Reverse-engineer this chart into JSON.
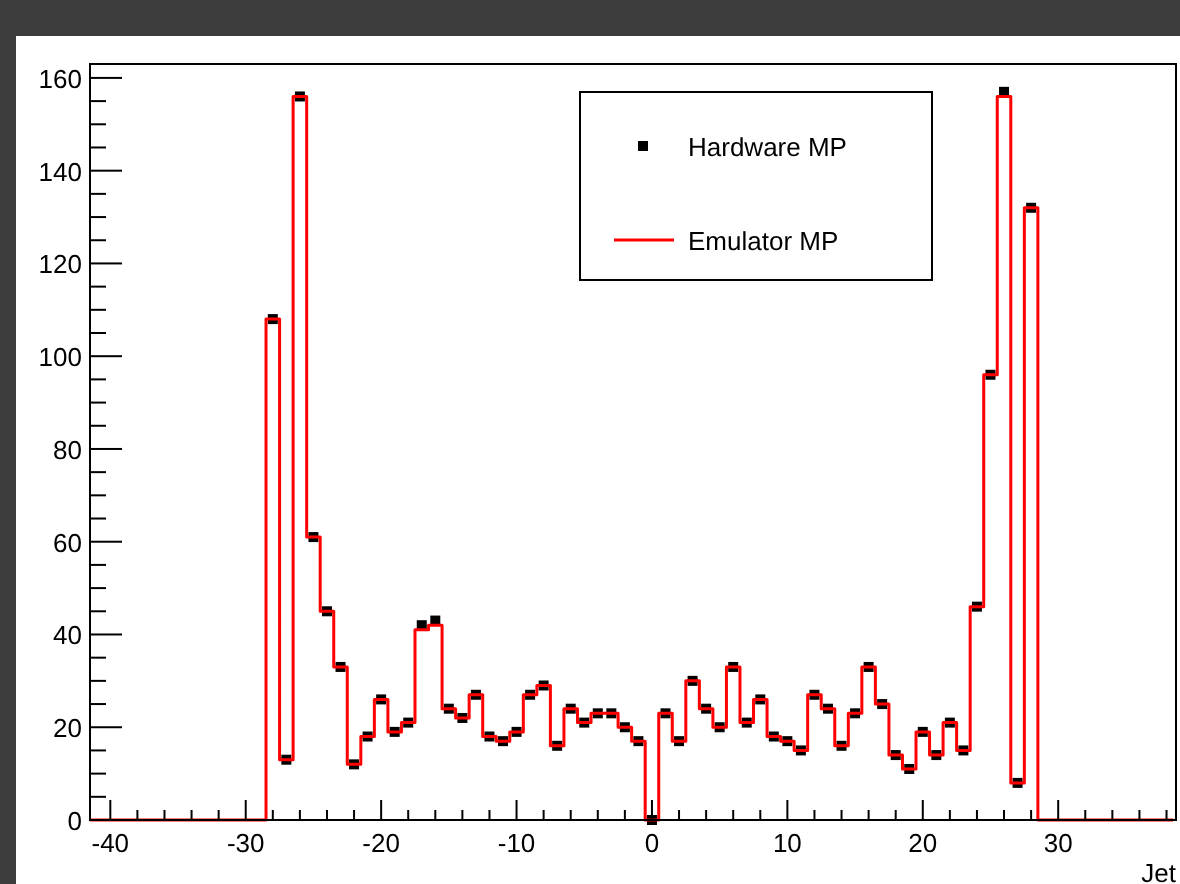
{
  "chart_data": {
    "type": "histogram",
    "xlabel": "Jet",
    "xlim": [
      -41.5,
      38.7
    ],
    "ylim": [
      0,
      163
    ],
    "xticks": [
      -40,
      {
        "value": -38,
        "label": null
      },
      {
        "value": -36,
        "label": null
      },
      {
        "value": -34,
        "label": null
      },
      {
        "value": -32,
        "label": null
      },
      -30,
      {
        "value": -28,
        "label": null
      },
      {
        "value": -26,
        "label": null
      },
      {
        "value": -24,
        "label": null
      },
      {
        "value": -22,
        "label": null
      },
      -20,
      {
        "value": -18,
        "label": null
      },
      {
        "value": -16,
        "label": null
      },
      {
        "value": -14,
        "label": null
      },
      {
        "value": -12,
        "label": null
      },
      -10,
      {
        "value": -8,
        "label": null
      },
      {
        "value": -6,
        "label": null
      },
      {
        "value": -4,
        "label": null
      },
      {
        "value": -2,
        "label": null
      },
      0,
      {
        "value": 2,
        "label": null
      },
      {
        "value": 4,
        "label": null
      },
      {
        "value": 6,
        "label": null
      },
      {
        "value": 8,
        "label": null
      },
      10,
      {
        "value": 12,
        "label": null
      },
      {
        "value": 14,
        "label": null
      },
      {
        "value": 16,
        "label": null
      },
      {
        "value": 18,
        "label": null
      },
      20,
      {
        "value": 22,
        "label": null
      },
      {
        "value": 24,
        "label": null
      },
      {
        "value": 26,
        "label": null
      },
      {
        "value": 28,
        "label": null
      },
      30,
      {
        "value": 32,
        "label": null
      },
      {
        "value": 34,
        "label": null
      },
      {
        "value": 36,
        "label": null
      },
      {
        "value": 38,
        "label": null
      }
    ],
    "yticks": [
      0,
      {
        "value": 5,
        "label": null
      },
      {
        "value": 10,
        "label": null
      },
      {
        "value": 15,
        "label": null
      },
      20,
      {
        "value": 25,
        "label": null
      },
      {
        "value": 30,
        "label": null
      },
      {
        "value": 35,
        "label": null
      },
      40,
      {
        "value": 45,
        "label": null
      },
      {
        "value": 50,
        "label": null
      },
      {
        "value": 55,
        "label": null
      },
      60,
      {
        "value": 65,
        "label": null
      },
      {
        "value": 70,
        "label": null
      },
      {
        "value": 75,
        "label": null
      },
      80,
      {
        "value": 85,
        "label": null
      },
      {
        "value": 90,
        "label": null
      },
      {
        "value": 95,
        "label": null
      },
      100,
      {
        "value": 105,
        "label": null
      },
      {
        "value": 110,
        "label": null
      },
      {
        "value": 115,
        "label": null
      },
      120,
      {
        "value": 125,
        "label": null
      },
      {
        "value": 130,
        "label": null
      },
      {
        "value": 135,
        "label": null
      },
      140,
      {
        "value": 145,
        "label": null
      },
      {
        "value": 150,
        "label": null
      },
      {
        "value": 155,
        "label": null
      },
      160
    ],
    "bins": [
      -41.5,
      -40.5,
      -39.5,
      -38.5,
      -37.5,
      -36.5,
      -35.5,
      -34.5,
      -33.5,
      -32.5,
      -31.5,
      -30.5,
      -29.5,
      -28.5,
      -27.5,
      -26.5,
      -25.5,
      -24.5,
      -23.5,
      -22.5,
      -21.5,
      -20.5,
      -19.5,
      -18.5,
      -17.5,
      -16.5,
      -15.5,
      -14.5,
      -13.5,
      -12.5,
      -11.5,
      -10.5,
      -9.5,
      -8.5,
      -7.5,
      -6.5,
      -5.5,
      -4.5,
      -3.5,
      -2.5,
      -1.5,
      -0.5,
      0.5,
      1.5,
      2.5,
      3.5,
      4.5,
      5.5,
      6.5,
      7.5,
      8.5,
      9.5,
      10.5,
      11.5,
      12.5,
      13.5,
      14.5,
      15.5,
      16.5,
      17.5,
      18.5,
      19.5,
      20.5,
      21.5,
      22.5,
      23.5,
      24.5,
      25.5,
      26.5,
      27.5,
      28.5,
      29.5,
      30.5,
      31.5,
      32.5,
      33.5,
      34.5,
      35.5,
      36.5,
      37.5,
      38.5
    ],
    "legend": "top right",
    "grid": false,
    "series": [
      {
        "name": "Hardware MP",
        "type": "scatter",
        "marker": "square",
        "color": "#000000",
        "x": [
          -28,
          -27,
          -26,
          -25,
          -24,
          -23,
          -22,
          -21,
          -20,
          -19,
          -18,
          -17,
          -16,
          -15,
          -14,
          -13,
          -12,
          -11,
          -10,
          -9,
          -8,
          -7,
          -6,
          -5,
          -4,
          -3,
          -2,
          -1,
          0,
          1,
          2,
          3,
          4,
          5,
          6,
          7,
          8,
          9,
          10,
          11,
          12,
          13,
          14,
          15,
          16,
          17,
          18,
          19,
          20,
          21,
          22,
          23,
          24,
          25,
          26,
          27,
          28
        ],
        "values": [
          108,
          13,
          156,
          61,
          45,
          33,
          12,
          18,
          26,
          19,
          21,
          42,
          43,
          24,
          22,
          27,
          18,
          17,
          19,
          27,
          29,
          16,
          24,
          21,
          23,
          23,
          20,
          17,
          0,
          23,
          17,
          30,
          24,
          20,
          33,
          21,
          26,
          18,
          17,
          15,
          27,
          24,
          16,
          23,
          33,
          25,
          14,
          11,
          19,
          14,
          21,
          15,
          46,
          96,
          157,
          8,
          132
        ]
      },
      {
        "name": "Emulator MP",
        "color": "#ff0000",
        "values": [
          0,
          0,
          0,
          0,
          0,
          0,
          0,
          0,
          0,
          0,
          0,
          0,
          0,
          108,
          13,
          156,
          61,
          45,
          33,
          12,
          18,
          26,
          19,
          21,
          41,
          42,
          24,
          22,
          27,
          18,
          17,
          19,
          27,
          29,
          16,
          24,
          21,
          23,
          23,
          20,
          17,
          0,
          23,
          17,
          30,
          24,
          20,
          33,
          21,
          26,
          18,
          17,
          15,
          27,
          24,
          16,
          23,
          33,
          25,
          14,
          11,
          19,
          14,
          21,
          15,
          46,
          96,
          156,
          8,
          132,
          0,
          0,
          0,
          0,
          0,
          0,
          0,
          0,
          0,
          0
        ]
      }
    ]
  }
}
